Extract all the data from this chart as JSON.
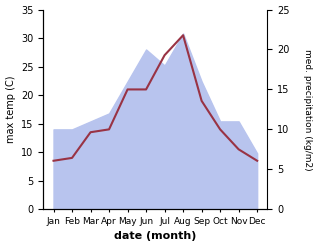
{
  "months": [
    "Jan",
    "Feb",
    "Mar",
    "Apr",
    "May",
    "Jun",
    "Jul",
    "Aug",
    "Sep",
    "Oct",
    "Nov",
    "Dec"
  ],
  "temp_max": [
    8.5,
    9.0,
    13.5,
    14.0,
    21.0,
    21.0,
    27.0,
    30.5,
    19.0,
    14.0,
    10.5,
    8.5
  ],
  "precipitation": [
    10.0,
    10.0,
    11.0,
    12.0,
    16.0,
    20.0,
    18.0,
    22.0,
    16.0,
    11.0,
    11.0,
    7.0
  ],
  "temp_color": "#993344",
  "precip_color_fill": "#b8c4ee",
  "temp_ylim": [
    0,
    35
  ],
  "precip_ylim": [
    0,
    25
  ],
  "temp_yticks": [
    0,
    5,
    10,
    15,
    20,
    25,
    30,
    35
  ],
  "precip_yticks": [
    0,
    5,
    10,
    15,
    20,
    25
  ],
  "ylabel_left": "max temp (C)",
  "ylabel_right": "med. precipitation (kg/m2)",
  "xlabel": "date (month)",
  "bg_color": "#ffffff"
}
